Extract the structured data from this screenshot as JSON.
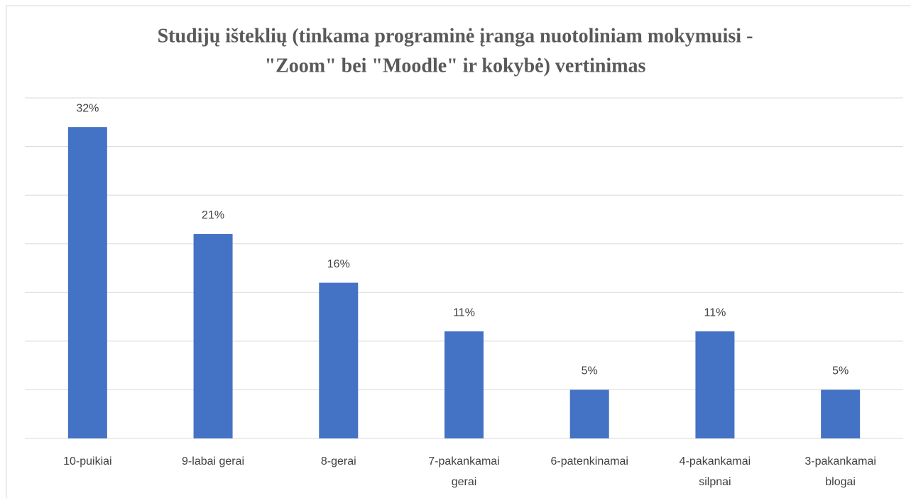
{
  "chart_data": {
    "type": "bar",
    "title": [
      "Studijų išteklių (tinkama programinė įranga nuotoliniam mokymuisi -",
      "\"Zoom\" bei \"Moodle\" ir kokybė) vertinimas"
    ],
    "categories": [
      "10-puikiai",
      "9-labai gerai",
      "8-gerai",
      "7-pakankamai gerai",
      "6-patenkinamai",
      "4-pakankamai silpnai",
      "3-pakankamai blogai"
    ],
    "values": [
      32,
      21,
      16,
      11,
      5,
      11,
      5
    ],
    "value_labels": [
      "32%",
      "21%",
      "16%",
      "11%",
      "5%",
      "11%",
      "5%"
    ],
    "color": "#4472c4",
    "ylim": [
      0,
      35
    ],
    "yticks": [
      0,
      5,
      10,
      15,
      20,
      25,
      30,
      35
    ],
    "grid": true
  }
}
